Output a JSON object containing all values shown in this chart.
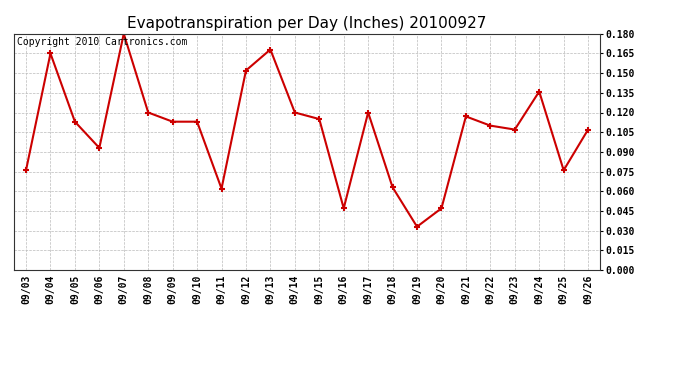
{
  "title": "Evapotranspiration per Day (Inches) 20100927",
  "copyright_text": "Copyright 2010 Cartronics.com",
  "dates": [
    "09/03",
    "09/04",
    "09/05",
    "09/06",
    "09/07",
    "09/08",
    "09/09",
    "09/10",
    "09/11",
    "09/12",
    "09/13",
    "09/14",
    "09/15",
    "09/16",
    "09/17",
    "09/18",
    "09/19",
    "09/20",
    "09/21",
    "09/22",
    "09/23",
    "09/24",
    "09/25",
    "09/26"
  ],
  "values": [
    0.076,
    0.165,
    0.113,
    0.093,
    0.18,
    0.12,
    0.113,
    0.113,
    0.062,
    0.152,
    0.168,
    0.12,
    0.115,
    0.047,
    0.12,
    0.063,
    0.033,
    0.047,
    0.117,
    0.11,
    0.107,
    0.136,
    0.076,
    0.107
  ],
  "line_color": "#cc0000",
  "marker": "+",
  "marker_size": 5,
  "marker_linewidth": 1.5,
  "line_width": 1.5,
  "bg_color": "#ffffff",
  "plot_bg_color": "#ffffff",
  "grid_color": "#bbbbbb",
  "ylim": [
    0.0,
    0.18
  ],
  "ytick_step": 0.015,
  "title_fontsize": 11,
  "copyright_fontsize": 7,
  "tick_fontsize": 7,
  "ytick_fontsize": 7,
  "ytick_fontweight": "bold"
}
